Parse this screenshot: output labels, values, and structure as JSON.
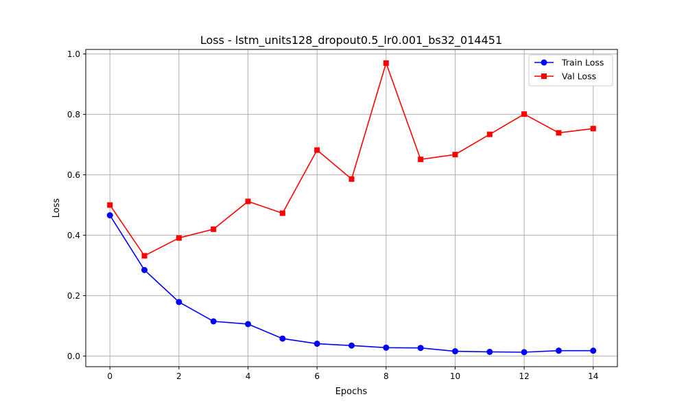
{
  "chart_data": {
    "type": "line",
    "title": "Loss - lstm_units128_dropout0.5_lr0.001_bs32_014451",
    "xlabel": "Epochs",
    "ylabel": "Loss",
    "x": [
      0,
      1,
      2,
      3,
      4,
      5,
      6,
      7,
      8,
      9,
      10,
      11,
      12,
      13,
      14
    ],
    "xlim": [
      -0.7,
      14.7
    ],
    "ylim": [
      -0.035,
      1.015
    ],
    "xticks": [
      0,
      2,
      4,
      6,
      8,
      10,
      12,
      14
    ],
    "yticks": [
      0.0,
      0.2,
      0.4,
      0.6,
      0.8,
      1.0
    ],
    "ytick_labels": [
      "0.0",
      "0.2",
      "0.4",
      "0.6",
      "0.8",
      "1.0"
    ],
    "grid": true,
    "legend_position": "top-right",
    "series": [
      {
        "name": "Train Loss",
        "color": "#0000ff",
        "marker": "circle",
        "values": [
          0.466,
          0.285,
          0.179,
          0.115,
          0.106,
          0.058,
          0.041,
          0.035,
          0.028,
          0.027,
          0.016,
          0.014,
          0.013,
          0.018,
          0.018
        ]
      },
      {
        "name": "Val Loss",
        "color": "#ff0000",
        "marker": "square",
        "values": [
          0.5,
          0.332,
          0.391,
          0.42,
          0.512,
          0.473,
          0.682,
          0.586,
          0.97,
          0.651,
          0.667,
          0.734,
          0.801,
          0.739,
          0.753
        ]
      }
    ]
  }
}
